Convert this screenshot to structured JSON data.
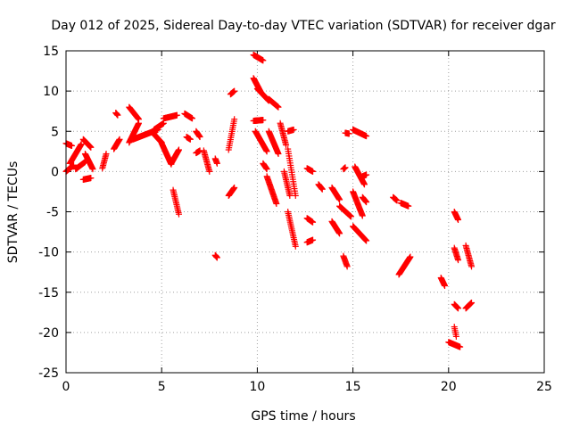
{
  "chart_data": {
    "type": "scatter",
    "title": "Day 012 of 2025, Sidereal Day-to-day VTEC variation (SDTVAR) for receiver dgar",
    "xlabel": "GPS time / hours",
    "ylabel": "SDTVAR / TECUs",
    "xlim": [
      0,
      25
    ],
    "ylim": [
      -25,
      15
    ],
    "xticks": [
      0,
      5,
      10,
      15,
      20,
      25
    ],
    "yticks": [
      15,
      10,
      5,
      0,
      -5,
      -10,
      -15,
      -20,
      -25
    ],
    "grid": true,
    "marker": "+",
    "color": "#ff0000",
    "segments": [
      {
        "t0": 0.0,
        "t1": 0.3,
        "v0": 3.5,
        "v1": 3.2
      },
      {
        "t0": 0.0,
        "t1": 0.4,
        "v0": 0.0,
        "v1": 0.8
      },
      {
        "t0": 0.2,
        "t1": 0.8,
        "v0": 1.0,
        "v1": 3.4
      },
      {
        "t0": 0.5,
        "t1": 1.0,
        "v0": 0.3,
        "v1": 1.2
      },
      {
        "t0": 0.9,
        "t1": 1.3,
        "v0": 4.0,
        "v1": 3.0
      },
      {
        "t0": 1.0,
        "t1": 1.4,
        "v0": 2.2,
        "v1": 0.3
      },
      {
        "t0": 0.9,
        "t1": 1.3,
        "v0": -1.0,
        "v1": -0.8
      },
      {
        "t0": 1.9,
        "t1": 2.1,
        "v0": 0.4,
        "v1": 2.2
      },
      {
        "t0": 2.5,
        "t1": 2.8,
        "v0": 2.8,
        "v1": 4.0
      },
      {
        "t0": 2.6,
        "t1": 2.7,
        "v0": 7.3,
        "v1": 7.0
      },
      {
        "t0": 3.3,
        "t1": 3.8,
        "v0": 8.0,
        "v1": 6.5
      },
      {
        "t0": 3.3,
        "t1": 3.8,
        "v0": 3.6,
        "v1": 6.0
      },
      {
        "t0": 3.5,
        "t1": 4.8,
        "v0": 4.0,
        "v1": 5.2
      },
      {
        "t0": 4.6,
        "t1": 5.1,
        "v0": 5.2,
        "v1": 6.0
      },
      {
        "t0": 4.5,
        "t1": 5.0,
        "v0": 4.9,
        "v1": 3.6
      },
      {
        "t0": 5.0,
        "t1": 5.5,
        "v0": 3.5,
        "v1": 0.9
      },
      {
        "t0": 5.1,
        "t1": 5.8,
        "v0": 6.6,
        "v1": 7.0
      },
      {
        "t0": 5.5,
        "t1": 5.9,
        "v0": 1.0,
        "v1": 2.7
      },
      {
        "t0": 5.6,
        "t1": 5.9,
        "v0": -2.3,
        "v1": -5.3
      },
      {
        "t0": 6.2,
        "t1": 6.6,
        "v0": 7.2,
        "v1": 6.6
      },
      {
        "t0": 6.3,
        "t1": 6.5,
        "v0": 4.3,
        "v1": 4.0
      },
      {
        "t0": 6.8,
        "t1": 7.0,
        "v0": 5.0,
        "v1": 4.3
      },
      {
        "t0": 6.8,
        "t1": 7.0,
        "v0": 2.3,
        "v1": 2.6
      },
      {
        "t0": 7.2,
        "t1": 7.5,
        "v0": 2.6,
        "v1": 0.0
      },
      {
        "t0": 7.8,
        "t1": 7.9,
        "v0": 1.6,
        "v1": 1.0
      },
      {
        "t0": 7.8,
        "t1": 7.9,
        "v0": -10.4,
        "v1": -10.7
      },
      {
        "t0": 8.5,
        "t1": 8.8,
        "v0": 2.7,
        "v1": 6.5
      },
      {
        "t0": 8.5,
        "t1": 8.8,
        "v0": -3.0,
        "v1": -2.0
      },
      {
        "t0": 8.6,
        "t1": 8.8,
        "v0": 9.6,
        "v1": 10.0
      },
      {
        "t0": 9.8,
        "t1": 10.3,
        "v0": 14.5,
        "v1": 13.8
      },
      {
        "t0": 9.8,
        "t1": 10.2,
        "v0": 11.6,
        "v1": 9.8
      },
      {
        "t0": 9.8,
        "t1": 10.3,
        "v0": 6.3,
        "v1": 6.4
      },
      {
        "t0": 9.9,
        "t1": 10.5,
        "v0": 5.0,
        "v1": 2.5
      },
      {
        "t0": 10.0,
        "t1": 10.6,
        "v0": 10.3,
        "v1": 8.8
      },
      {
        "t0": 10.3,
        "t1": 10.5,
        "v0": 1.0,
        "v1": 0.3
      },
      {
        "t0": 10.6,
        "t1": 11.1,
        "v0": 9.0,
        "v1": 8.0
      },
      {
        "t0": 10.6,
        "t1": 11.1,
        "v0": 5.0,
        "v1": 2.2
      },
      {
        "t0": 10.5,
        "t1": 11.0,
        "v0": -0.6,
        "v1": -4.0
      },
      {
        "t0": 11.2,
        "t1": 11.5,
        "v0": 6.0,
        "v1": 3.3
      },
      {
        "t0": 11.4,
        "t1": 11.7,
        "v0": 0.0,
        "v1": -3.0
      },
      {
        "t0": 11.6,
        "t1": 11.9,
        "v0": 5.0,
        "v1": 5.2
      },
      {
        "t0": 11.6,
        "t1": 12.0,
        "v0": 2.8,
        "v1": -3.0
      },
      {
        "t0": 11.6,
        "t1": 12.0,
        "v0": -5.0,
        "v1": -9.3
      },
      {
        "t0": 12.6,
        "t1": 12.9,
        "v0": 0.4,
        "v1": 0.0
      },
      {
        "t0": 12.6,
        "t1": 12.9,
        "v0": -5.8,
        "v1": -6.3
      },
      {
        "t0": 12.6,
        "t1": 12.9,
        "v0": -8.8,
        "v1": -8.5
      },
      {
        "t0": 13.2,
        "t1": 13.4,
        "v0": -1.6,
        "v1": -2.2
      },
      {
        "t0": 13.9,
        "t1": 14.3,
        "v0": -2.0,
        "v1": -3.5
      },
      {
        "t0": 13.9,
        "t1": 14.3,
        "v0": -6.2,
        "v1": -7.7
      },
      {
        "t0": 14.5,
        "t1": 14.6,
        "v0": 0.3,
        "v1": 0.5
      },
      {
        "t0": 14.3,
        "t1": 14.9,
        "v0": -4.3,
        "v1": -5.6
      },
      {
        "t0": 14.5,
        "t1": 14.7,
        "v0": -10.5,
        "v1": -11.8
      },
      {
        "t0": 14.6,
        "t1": 14.8,
        "v0": 4.8,
        "v1": 4.7
      },
      {
        "t0": 15.0,
        "t1": 15.7,
        "v0": 5.2,
        "v1": 4.4
      },
      {
        "t0": 15.1,
        "t1": 15.6,
        "v0": 0.6,
        "v1": -1.6
      },
      {
        "t0": 15.0,
        "t1": 15.5,
        "v0": -2.5,
        "v1": -5.5
      },
      {
        "t0": 15.0,
        "t1": 15.7,
        "v0": -6.8,
        "v1": -8.6
      },
      {
        "t0": 15.5,
        "t1": 15.7,
        "v0": -3.2,
        "v1": -3.8
      },
      {
        "t0": 15.5,
        "t1": 15.7,
        "v0": -0.6,
        "v1": -0.4
      },
      {
        "t0": 17.1,
        "t1": 17.3,
        "v0": -3.2,
        "v1": -3.6
      },
      {
        "t0": 17.5,
        "t1": 17.9,
        "v0": -3.9,
        "v1": -4.3
      },
      {
        "t0": 17.4,
        "t1": 18.0,
        "v0": -12.8,
        "v1": -10.6
      },
      {
        "t0": 19.6,
        "t1": 19.8,
        "v0": -13.2,
        "v1": -14.2
      },
      {
        "t0": 20.0,
        "t1": 20.6,
        "v0": -21.2,
        "v1": -21.8
      },
      {
        "t0": 20.3,
        "t1": 20.5,
        "v0": -5.0,
        "v1": -6.0
      },
      {
        "t0": 20.3,
        "t1": 20.5,
        "v0": -9.5,
        "v1": -11.0
      },
      {
        "t0": 20.3,
        "t1": 20.5,
        "v0": -16.5,
        "v1": -17.0
      },
      {
        "t0": 20.3,
        "t1": 20.4,
        "v0": -19.3,
        "v1": -20.5
      },
      {
        "t0": 20.9,
        "t1": 21.2,
        "v0": -9.2,
        "v1": -11.8
      },
      {
        "t0": 20.9,
        "t1": 21.2,
        "v0": -17.0,
        "v1": -16.3
      }
    ]
  }
}
